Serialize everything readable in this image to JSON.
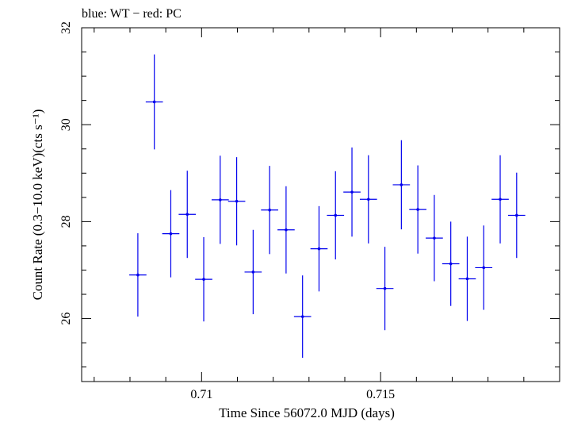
{
  "chart_data": {
    "type": "scatter",
    "title": "blue: WT − red: PC",
    "xlabel": "Time Since 56072.0 MJD (days)",
    "ylabel": "Count Rate (0.3−10.0 keV)(cts s⁻¹)",
    "xlim": [
      0.70665,
      0.72
    ],
    "ylim": [
      24.7,
      32.0
    ],
    "x_ticks": [
      0.71,
      0.715
    ],
    "x_tick_labels": [
      "0.71",
      "0.715"
    ],
    "y_ticks": [
      26,
      28,
      30,
      32
    ],
    "y_tick_labels": [
      "26",
      "28",
      "30",
      "32"
    ],
    "grid": false,
    "series": [
      {
        "color": "#0000ee",
        "x_halfwidth": 0.00024,
        "points": [
          {
            "x": 0.70822,
            "y": 26.9,
            "yerr": 0.86
          },
          {
            "x": 0.70868,
            "y": 30.47,
            "yerr": 0.98
          },
          {
            "x": 0.70914,
            "y": 27.75,
            "yerr": 0.9
          },
          {
            "x": 0.7096,
            "y": 28.15,
            "yerr": 0.9
          },
          {
            "x": 0.71006,
            "y": 26.81,
            "yerr": 0.87
          },
          {
            "x": 0.71052,
            "y": 28.45,
            "yerr": 0.91
          },
          {
            "x": 0.71098,
            "y": 28.42,
            "yerr": 0.91
          },
          {
            "x": 0.71144,
            "y": 26.96,
            "yerr": 0.87
          },
          {
            "x": 0.7119,
            "y": 28.24,
            "yerr": 0.91
          },
          {
            "x": 0.71236,
            "y": 27.83,
            "yerr": 0.9
          },
          {
            "x": 0.71282,
            "y": 26.04,
            "yerr": 0.85
          },
          {
            "x": 0.71328,
            "y": 27.44,
            "yerr": 0.88
          },
          {
            "x": 0.71374,
            "y": 28.13,
            "yerr": 0.91
          },
          {
            "x": 0.7142,
            "y": 28.61,
            "yerr": 0.92
          },
          {
            "x": 0.71466,
            "y": 28.46,
            "yerr": 0.91
          },
          {
            "x": 0.71512,
            "y": 26.62,
            "yerr": 0.86
          },
          {
            "x": 0.71558,
            "y": 28.76,
            "yerr": 0.92
          },
          {
            "x": 0.71604,
            "y": 28.25,
            "yerr": 0.91
          },
          {
            "x": 0.7165,
            "y": 27.66,
            "yerr": 0.89
          },
          {
            "x": 0.71696,
            "y": 27.13,
            "yerr": 0.87
          },
          {
            "x": 0.71742,
            "y": 26.82,
            "yerr": 0.87
          },
          {
            "x": 0.71788,
            "y": 27.05,
            "yerr": 0.87
          },
          {
            "x": 0.71834,
            "y": 28.46,
            "yerr": 0.91
          },
          {
            "x": 0.7188,
            "y": 28.13,
            "yerr": 0.88
          }
        ]
      }
    ]
  }
}
